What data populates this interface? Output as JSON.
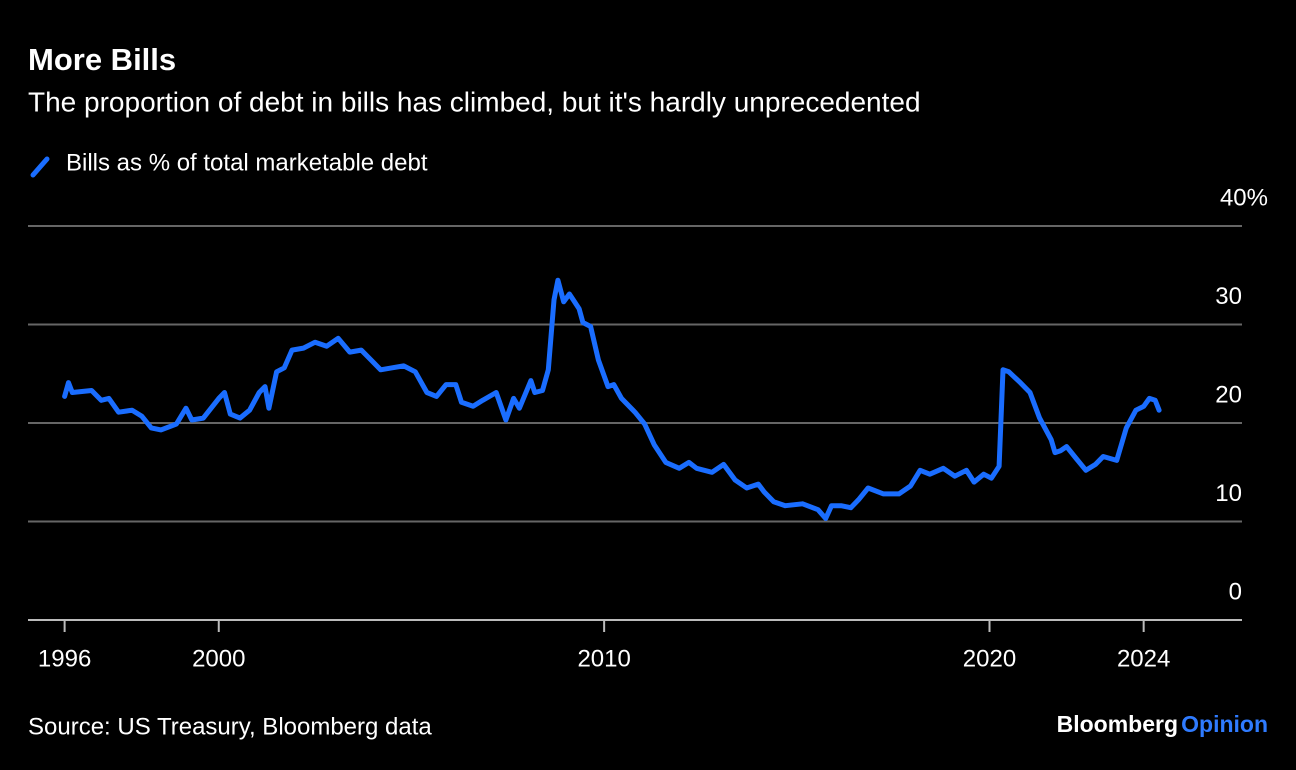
{
  "chart_data": {
    "type": "line",
    "title": "More Bills",
    "subtitle": "The proportion of debt in bills has climbed, but it's hardly unprecedented",
    "source": "Source: US Treasury, Bloomberg data",
    "brand": "Bloomberg",
    "brand_suffix": "Opinion",
    "xlim": [
      1995.05,
      2026.5
    ],
    "xticks": [
      1996,
      2000,
      2010,
      2020,
      2024
    ],
    "ylim": [
      0,
      40
    ],
    "yticks": [
      0,
      10,
      20,
      30,
      {
        "value": 40,
        "label": "40%"
      }
    ],
    "grid": true,
    "series": [
      {
        "name": "Bills as % of total marketable debt",
        "color": "#1a6dff",
        "x": [
          1996.0,
          1996.1,
          1996.2,
          1996.7,
          1996.95,
          1997.15,
          1997.4,
          1997.75,
          1998.0,
          1998.25,
          1998.5,
          1998.9,
          1999.15,
          1999.3,
          1999.6,
          2000.0,
          2000.15,
          2000.3,
          2000.55,
          2000.8,
          2001.05,
          2001.2,
          2001.3,
          2001.5,
          2001.7,
          2001.9,
          2002.2,
          2002.5,
          2002.8,
          2003.1,
          2003.4,
          2003.7,
          2004.0,
          2004.2,
          2004.5,
          2004.8,
          2005.1,
          2005.4,
          2005.65,
          2005.9,
          2006.15,
          2006.3,
          2006.6,
          2006.85,
          2007.2,
          2007.45,
          2007.65,
          2007.8,
          2008.1,
          2008.2,
          2008.4,
          2008.55,
          2008.7,
          2008.8,
          2008.95,
          2009.1,
          2009.2,
          2009.35,
          2009.45,
          2009.65,
          2009.85,
          2010.1,
          2010.25,
          2010.45,
          2010.8,
          2011.05,
          2011.3,
          2011.6,
          2011.95,
          2012.2,
          2012.4,
          2012.8,
          2013.1,
          2013.4,
          2013.7,
          2014.0,
          2014.15,
          2014.4,
          2014.7,
          2015.15,
          2015.55,
          2015.75,
          2015.9,
          2016.15,
          2016.4,
          2016.6,
          2016.85,
          2017.25,
          2017.65,
          2017.95,
          2018.2,
          2018.45,
          2018.8,
          2019.1,
          2019.4,
          2019.6,
          2019.85,
          2020.05,
          2020.25,
          2020.35,
          2020.5,
          2020.8,
          2021.05,
          2021.3,
          2021.6,
          2021.7,
          2021.85,
          2022.0,
          2022.25,
          2022.5,
          2022.75,
          2022.95,
          2023.3,
          2023.55,
          2023.8,
          2024.0,
          2024.15,
          2024.3,
          2024.4
        ],
        "values": [
          22.7,
          24.1,
          23.1,
          23.3,
          22.3,
          22.5,
          21.1,
          21.3,
          20.7,
          19.5,
          19.3,
          19.9,
          21.5,
          20.3,
          20.5,
          22.5,
          23.1,
          20.9,
          20.5,
          21.3,
          23.1,
          23.7,
          21.5,
          25.2,
          25.6,
          27.4,
          27.6,
          28.2,
          27.8,
          28.6,
          27.2,
          27.4,
          26.2,
          25.4,
          25.6,
          25.8,
          25.2,
          23.1,
          22.7,
          23.9,
          23.9,
          22.1,
          21.7,
          22.3,
          23.1,
          20.3,
          22.5,
          21.5,
          24.3,
          23.1,
          23.3,
          25.4,
          32.5,
          34.5,
          32.3,
          33.1,
          32.5,
          31.6,
          30.2,
          29.8,
          26.4,
          23.7,
          23.9,
          22.5,
          21.1,
          19.9,
          17.8,
          16.0,
          15.4,
          16.0,
          15.4,
          15.0,
          15.8,
          14.2,
          13.4,
          13.8,
          13.0,
          12.0,
          11.6,
          11.8,
          11.2,
          10.3,
          11.6,
          11.6,
          11.4,
          12.2,
          13.4,
          12.8,
          12.8,
          13.6,
          15.2,
          14.8,
          15.4,
          14.6,
          15.2,
          14.0,
          14.8,
          14.4,
          15.6,
          25.4,
          25.2,
          24.1,
          23.1,
          20.5,
          18.3,
          17.0,
          17.2,
          17.6,
          16.4,
          15.2,
          15.8,
          16.6,
          16.2,
          19.5,
          21.3,
          21.7,
          22.5,
          22.3,
          21.3
        ]
      }
    ]
  }
}
